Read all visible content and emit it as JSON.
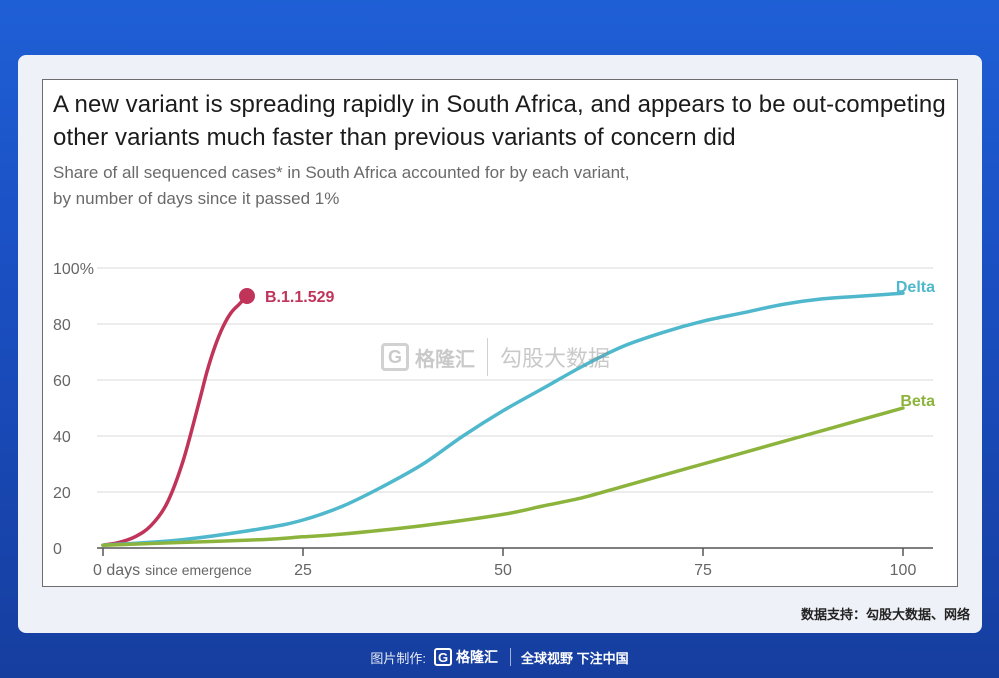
{
  "title": "A new variant is spreading rapidly in South Africa, and appears to be out-competing other variants much faster than previous variants of concern did",
  "subtitle_line1": "Share of all sequenced cases* in South Africa accounted for by each variant,",
  "subtitle_line2": "by number of days since it passed 1%",
  "source": "数据支持：勾股大数据、网络",
  "watermark": {
    "brand": "格隆汇",
    "brand2": "勾股大数据"
  },
  "footer": {
    "made_by": "图片制作:",
    "logo_letter": "G",
    "logo_text": "格隆汇",
    "slogan": "全球视野 下注中国"
  },
  "chart_data": {
    "type": "line",
    "title": "A new variant is spreading rapidly in South Africa, and appears to be out-competing other variants much faster than previous variants of concern did",
    "ylabel": "",
    "xlabel": "",
    "xlim": [
      0,
      100
    ],
    "ylim": [
      0,
      100
    ],
    "y_ticks": [
      {
        "value": 0,
        "label": "0"
      },
      {
        "value": 20,
        "label": "20"
      },
      {
        "value": 40,
        "label": "40"
      },
      {
        "value": 60,
        "label": "60"
      },
      {
        "value": 80,
        "label": "80"
      },
      {
        "value": 100,
        "label": "100%"
      }
    ],
    "x_ticks": [
      {
        "value": 0,
        "label": "0 days",
        "suffix": "since emergence"
      },
      {
        "value": 25,
        "label": "25"
      },
      {
        "value": 50,
        "label": "50"
      },
      {
        "value": 75,
        "label": "75"
      },
      {
        "value": 100,
        "label": "100"
      }
    ],
    "grid": true,
    "series": [
      {
        "name": "B.1.1.529",
        "color": "#c0345a",
        "end_marker": true,
        "x": [
          0,
          2,
          4,
          6,
          8,
          10,
          12,
          13,
          14,
          15,
          16,
          17,
          18
        ],
        "y": [
          1,
          2,
          4,
          8,
          16,
          31,
          52,
          63,
          72,
          79,
          84,
          87,
          90
        ]
      },
      {
        "name": "Delta",
        "color": "#4fb8cc",
        "end_marker": false,
        "x": [
          0,
          10,
          20,
          25,
          30,
          35,
          40,
          45,
          50,
          55,
          60,
          65,
          70,
          75,
          80,
          85,
          90,
          95,
          100
        ],
        "y": [
          1,
          3,
          7,
          10,
          15,
          22,
          30,
          40,
          49,
          57,
          65,
          72,
          77,
          81,
          84,
          87,
          89,
          90,
          91
        ]
      },
      {
        "name": "Beta",
        "color": "#8cb43c",
        "end_marker": false,
        "x": [
          0,
          10,
          20,
          25,
          30,
          40,
          50,
          55,
          60,
          65,
          70,
          75,
          80,
          85,
          90,
          95,
          100
        ],
        "y": [
          1,
          2,
          3,
          4,
          5,
          8,
          12,
          15,
          18,
          22,
          26,
          30,
          34,
          38,
          42,
          46,
          50
        ]
      }
    ]
  }
}
